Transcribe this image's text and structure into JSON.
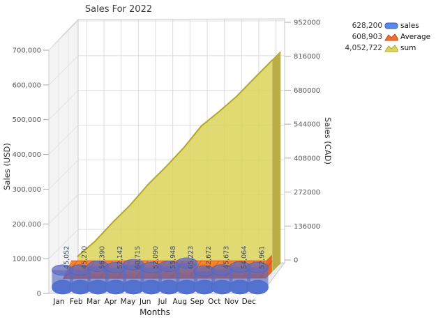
{
  "chart_data": {
    "type": "3d-combo-cylinder-bar-and-area",
    "title": "Sales For 2022",
    "xlabel": "Months",
    "categories": [
      "Jan",
      "Feb",
      "Mar",
      "Apr",
      "May",
      "Jun",
      "Jul",
      "Aug",
      "Sep",
      "Oct",
      "Nov",
      "Dec"
    ],
    "series": [
      {
        "name": "sales",
        "type": "bar",
        "axis": "left",
        "color": "#4b7de2",
        "values": [
          45052,
          45270,
          56390,
          52142,
          60715,
          52090,
          55948,
          65223,
          42672,
          45673,
          54064,
          52961
        ],
        "value_labels": [
          "45,052",
          "45,270",
          "56,390",
          "52,142",
          "60,715",
          "52,090",
          "55,948",
          "65,223",
          "42,672",
          "45,673",
          "54,064",
          "52,961"
        ],
        "total_label": "628,200"
      },
      {
        "name": "Average",
        "type": "area",
        "axis": "left",
        "color": "#ee6a1f",
        "approx_monthly_value": 50742,
        "total_label": "608,903"
      },
      {
        "name": "sum",
        "type": "area",
        "axis": "right",
        "color": "#dcd45a",
        "cumulative_values_cad_est": [
          60820,
          121935,
          198061,
          268453,
          350418,
          420740,
          496269,
          584321,
          641928,
          703586,
          776573,
          848070
        ],
        "total_label": "4,052,722"
      }
    ],
    "left_axis": {
      "title": "Sales (USD)",
      "ticks": [
        "0",
        "100,000",
        "200,000",
        "300,000",
        "400,000",
        "500,000",
        "600,000",
        "700,000"
      ],
      "range": [
        0,
        700000
      ]
    },
    "right_axis": {
      "title": "Sales (CAD)",
      "ticks": [
        "0",
        "136000",
        "272000",
        "408000",
        "544000",
        "680000",
        "816000",
        "952000"
      ],
      "range": [
        0,
        952000
      ]
    },
    "legend": {
      "position": "top-right",
      "items": [
        {
          "value": "628,200",
          "label": "sales",
          "icon": "cylinder",
          "fill": "#5b8ae6",
          "border": "#2f5ec4"
        },
        {
          "value": "608,903",
          "label": "Average",
          "icon": "area",
          "fill": "#f0712a",
          "border": "#c2411a"
        },
        {
          "value": "4,052,722",
          "label": "sum",
          "icon": "area",
          "fill": "#dcd45a",
          "border": "#b1a626"
        }
      ]
    },
    "grid": true
  },
  "colors": {
    "background": "#ffffff",
    "back_wall": "#ffffff",
    "left_wall": "#f4f4f4",
    "floor": "#ececec",
    "grid_back": "#dcdcdc",
    "grid_left": "#e3e3e3",
    "box_edge": "#c8c8c8",
    "tick": "#aaaaaa",
    "tick_label": "#555555",
    "month_label": "#1a1a1a",
    "bar_label": "#3f4c6b",
    "title": "#3a3a3a",
    "bar_fill": "#4b7de2",
    "bar_stroke": "#3d6ad0",
    "bar_body": "rgba(88,108,196,0.66)",
    "bar_top": "rgba(100,105,190,0.75)",
    "orange_top": "#f68f2e",
    "orange_bottom": "#e04c1e",
    "orange_side": "#e8641f",
    "orange_stripe": "#c23f16",
    "yellow_fill": "#dcd45a",
    "yellow_edge": "#b2a726",
    "yellow_side": "#b5aa3c"
  }
}
